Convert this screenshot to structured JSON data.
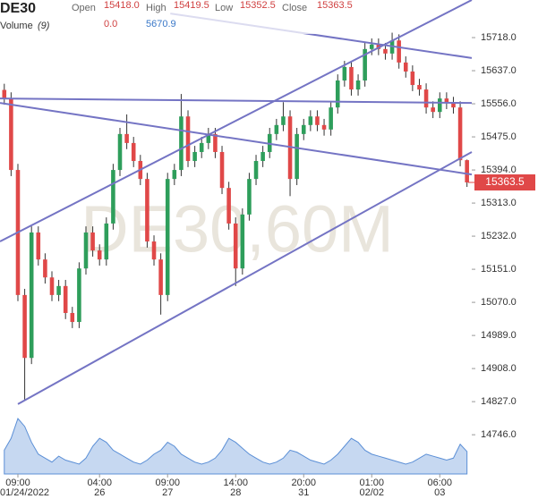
{
  "chart_data": {
    "type": "candlestick",
    "title": "DE30",
    "ohlc_labels": [
      "Open",
      "High",
      "Low",
      "Close"
    ],
    "ohlc_value_labels": [
      "15418.0",
      "15419.5",
      "15352.5",
      "15363.5"
    ],
    "volume_title": "Volume",
    "volume_period": "(9)",
    "volume_value_labels": [
      "0.0",
      "5670.9"
    ],
    "last_price_label": "15363.5",
    "watermark": "DE30,60M",
    "up_color": "#2e9e5b",
    "down_color": "#e04848",
    "line_color": "#7474c4",
    "volume_color": "#5b8fd6",
    "xlim": [
      -0.63,
      68.7
    ],
    "ylim": [
      14650,
      15810
    ],
    "yticks": [
      {
        "value": 15718,
        "label": "15718.0"
      },
      {
        "value": 15637,
        "label": "15637.0"
      },
      {
        "value": 15556,
        "label": "15556.0"
      },
      {
        "value": 15475,
        "label": "15475.0"
      },
      {
        "value": 15394,
        "label": "15394.0"
      },
      {
        "value": 15313,
        "label": "15313.0"
      },
      {
        "value": 15232,
        "label": "15232.0"
      },
      {
        "value": 15151,
        "label": "15151.0"
      },
      {
        "value": 15070,
        "label": "15070.0"
      },
      {
        "value": 14989,
        "label": "14989.0"
      },
      {
        "value": 14908,
        "label": "14908.0"
      },
      {
        "value": 14827,
        "label": "14827.0"
      },
      {
        "value": 14746,
        "label": "14746.0"
      }
    ],
    "xticks": [
      {
        "value": 2,
        "label": "09:00"
      },
      {
        "value": 14,
        "label": "04:00"
      },
      {
        "value": 24,
        "label": "09:00"
      },
      {
        "value": 34,
        "label": "14:00"
      },
      {
        "value": 44,
        "label": "20:00"
      },
      {
        "value": 54,
        "label": "01:00"
      },
      {
        "value": 64,
        "label": "06:00"
      }
    ],
    "xtick_dates": [
      {
        "value": 2,
        "label": "01/24/2022"
      },
      {
        "value": 14,
        "label": "26"
      },
      {
        "value": 24,
        "label": "27"
      },
      {
        "value": 34,
        "label": "28"
      },
      {
        "value": 44,
        "label": "31"
      },
      {
        "value": 54,
        "label": "02/02"
      },
      {
        "value": 64,
        "label": "03"
      }
    ],
    "open": [
      15590,
      15569,
      15394,
      15088,
      14934,
      15241,
      15175,
      15131,
      15088,
      15110,
      15044,
      15022,
      15153,
      15241,
      15197,
      15175,
      15263,
      15394,
      15482,
      15460,
      15416,
      15372,
      15219,
      15175,
      15088,
      15372,
      15394,
      15525,
      15416,
      15438,
      15460,
      15482,
      15438,
      15350,
      15263,
      15153,
      15285,
      15372,
      15416,
      15438,
      15482,
      15504,
      15525,
      15372,
      15482,
      15504,
      15525,
      15504,
      15493,
      15547,
      15613,
      15646,
      15591,
      15613,
      15690,
      15701,
      15690,
      15679,
      15711,
      15657,
      15635,
      15602,
      15591,
      15547,
      15536,
      15569,
      15558,
      15547,
      15418.0
    ],
    "high": [
      15605,
      15584,
      15409,
      15103,
      15256,
      15256,
      15190,
      15146,
      15125,
      15125,
      15059,
      15168,
      15256,
      15256,
      15212,
      15278,
      15409,
      15497,
      15530,
      15475,
      15431,
      15387,
      15234,
      15190,
      15387,
      15409,
      15580,
      15540,
      15453,
      15475,
      15497,
      15497,
      15453,
      15365,
      15278,
      15300,
      15387,
      15431,
      15453,
      15497,
      15519,
      15560,
      15540,
      15497,
      15519,
      15540,
      15540,
      15519,
      15562,
      15628,
      15661,
      15661,
      15628,
      15705,
      15716,
      15716,
      15705,
      15730,
      15726,
      15672,
      15650,
      15617,
      15606,
      15562,
      15584,
      15584,
      15573,
      15562,
      15419.5
    ],
    "low": [
      15554,
      15379,
      15073,
      14831,
      14919,
      15160,
      15116,
      15073,
      15073,
      15029,
      15007,
      15007,
      15138,
      15182,
      15160,
      15160,
      15248,
      15379,
      15445,
      15401,
      15357,
      15204,
      15160,
      15040,
      15073,
      15357,
      15379,
      15401,
      15401,
      15423,
      15445,
      15423,
      15335,
      15248,
      15110,
      15138,
      15270,
      15357,
      15401,
      15423,
      15467,
      15489,
      15330,
      15357,
      15467,
      15489,
      15489,
      15478,
      15478,
      15532,
      15598,
      15576,
      15576,
      15598,
      15675,
      15675,
      15664,
      15664,
      15642,
      15620,
      15587,
      15576,
      15532,
      15521,
      15521,
      15543,
      15532,
      15403,
      15352.5
    ],
    "close": [
      15569,
      15394,
      15088,
      14934,
      15241,
      15175,
      15131,
      15088,
      15110,
      15044,
      15022,
      15153,
      15241,
      15197,
      15175,
      15263,
      15394,
      15482,
      15460,
      15416,
      15372,
      15219,
      15175,
      15088,
      15372,
      15394,
      15525,
      15416,
      15438,
      15460,
      15482,
      15438,
      15350,
      15263,
      15153,
      15285,
      15372,
      15416,
      15438,
      15482,
      15504,
      15525,
      15372,
      15482,
      15504,
      15525,
      15504,
      15493,
      15547,
      15613,
      15646,
      15591,
      15613,
      15690,
      15701,
      15690,
      15679,
      15711,
      15657,
      15635,
      15602,
      15591,
      15547,
      15536,
      15569,
      15558,
      15547,
      15418,
      15363.5
    ],
    "volume": [
      6000,
      9000,
      14000,
      12000,
      8000,
      5000,
      4000,
      3000,
      4500,
      3500,
      3000,
      2500,
      4000,
      7000,
      9000,
      8000,
      6000,
      5000,
      4000,
      3000,
      2500,
      3500,
      5000,
      6000,
      8000,
      7000,
      5000,
      4000,
      3000,
      2500,
      3000,
      4000,
      6000,
      9000,
      8000,
      6500,
      5000,
      4000,
      3000,
      2500,
      3000,
      4000,
      6000,
      5500,
      4500,
      3500,
      3000,
      2500,
      3500,
      5000,
      7000,
      9000,
      8000,
      6000,
      5000,
      4500,
      4000,
      3500,
      3000,
      2500,
      3000,
      4000,
      5000,
      4500,
      4000,
      3500,
      4000,
      7500,
      5670.9
    ],
    "trendlines": [
      {
        "x": [
          -0.63,
          68.7
        ],
        "y": [
          15219,
          15810
        ]
      },
      {
        "x": [
          2,
          68.7
        ],
        "y": [
          14821,
          15438
        ]
      },
      {
        "x": [
          -0.63,
          68.7
        ],
        "y": [
          15569,
          15558
        ]
      },
      {
        "x": [
          -0.63,
          68.7
        ],
        "y": [
          15558,
          15383
        ]
      },
      {
        "x": [
          24.4,
          68.7
        ],
        "y": [
          15777,
          15668
        ]
      }
    ]
  }
}
